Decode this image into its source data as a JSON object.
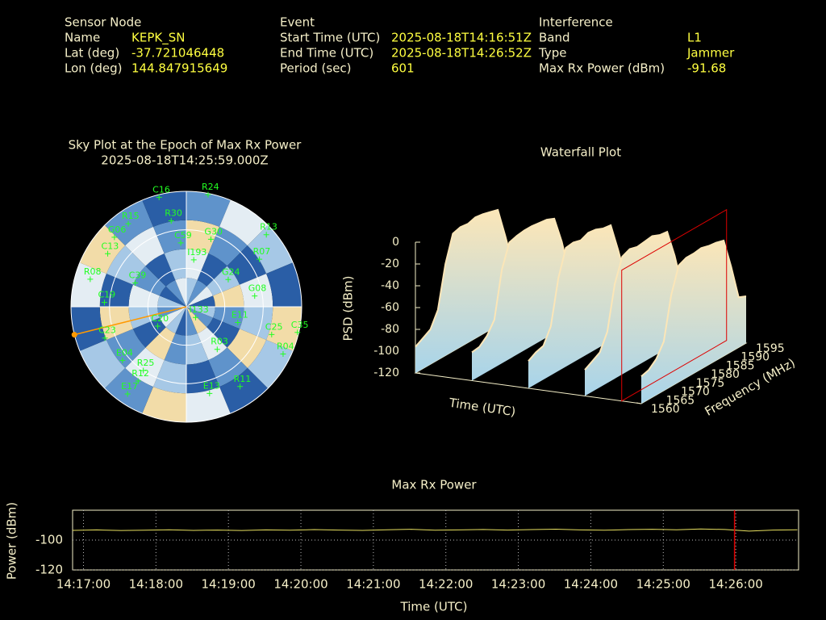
{
  "info": [
    {
      "title": "Sensor Node",
      "rows": [
        [
          "Name",
          "KEPK_SN"
        ],
        [
          "Lat (deg)",
          "-37.721046448"
        ],
        [
          "Lon (deg)",
          "144.847915649"
        ]
      ]
    },
    {
      "title": "Event",
      "rows": [
        [
          "Start Time (UTC)",
          "2025-08-18T14:16:51Z"
        ],
        [
          "End Time (UTC)",
          "2025-08-18T14:26:52Z"
        ],
        [
          "Period (sec)",
          "601"
        ]
      ]
    },
    {
      "title": "Interference",
      "rows": [
        [
          "Band",
          "L1"
        ],
        [
          "Type",
          "Jammer"
        ],
        [
          "Max Rx Power (dBm)",
          "-91.68"
        ]
      ]
    }
  ],
  "chart_data": [
    {
      "type": "polar",
      "title": "Sky Plot at the Epoch of Max Rx Power",
      "subtitle": "2025-08-18T14:25:59.000Z",
      "cell_levels": [
        [
          2,
          1,
          3,
          0,
          2,
          1,
          4,
          1,
          0,
          2,
          3,
          1,
          2,
          0,
          1,
          3
        ],
        [
          3,
          0,
          2,
          4,
          1,
          0,
          3,
          2,
          1,
          4,
          0,
          2,
          3,
          1,
          0,
          2
        ],
        [
          4,
          1,
          0,
          3,
          2,
          4,
          1,
          0,
          2,
          3,
          1,
          4,
          0,
          2,
          3,
          1
        ],
        [
          1,
          3,
          2,
          0,
          4,
          2,
          0,
          3,
          4,
          1,
          2,
          0,
          3,
          4,
          1,
          0
        ]
      ],
      "colors": [
        "#2a5ea6",
        "#5f93cb",
        "#a6c8e6",
        "#e4edf3",
        "#f2dca8"
      ],
      "elevation_grid": [
        30,
        60
      ],
      "azimuth_grid": [
        0,
        90,
        180,
        270
      ],
      "interference_azimuth": 256,
      "interference_color": "#ff9900",
      "satellite_color": "#22ff22",
      "satellites": [
        {
          "label": "C16",
          "az": 346,
          "el": 2
        },
        {
          "label": "R24",
          "az": 11,
          "el": 1
        },
        {
          "label": "R30",
          "az": 350,
          "el": 22
        },
        {
          "label": "R15",
          "az": 325,
          "el": 11
        },
        {
          "label": "R13",
          "az": 48,
          "el": 6
        },
        {
          "label": "G30",
          "az": 20,
          "el": 34
        },
        {
          "label": "C59",
          "az": 355,
          "el": 40
        },
        {
          "label": "G06",
          "az": 314,
          "el": 12
        },
        {
          "label": "C13",
          "az": 304,
          "el": 16
        },
        {
          "label": "R07",
          "az": 57,
          "el": 22
        },
        {
          "label": "I193",
          "az": 9,
          "el": 53
        },
        {
          "label": "G24",
          "az": 57,
          "el": 51
        },
        {
          "label": "R08",
          "az": 286,
          "el": 12
        },
        {
          "label": "C39",
          "az": 295,
          "el": 46
        },
        {
          "label": "G08",
          "az": 81,
          "el": 36
        },
        {
          "label": "C19",
          "az": 273,
          "el": 26
        },
        {
          "label": "I133",
          "az": 139,
          "el": 79
        },
        {
          "label": "C20",
          "az": 236,
          "el": 63
        },
        {
          "label": "E11",
          "az": 107,
          "el": 48
        },
        {
          "label": "C25",
          "az": 108,
          "el": 20
        },
        {
          "label": "C35",
          "az": 103,
          "el": 1
        },
        {
          "label": "R03",
          "az": 144,
          "el": 49
        },
        {
          "label": "C23",
          "az": 249,
          "el": 22
        },
        {
          "label": "E04",
          "az": 230,
          "el": 25
        },
        {
          "label": "R25",
          "az": 214,
          "el": 30
        },
        {
          "label": "R04",
          "az": 116,
          "el": 6
        },
        {
          "label": "R11",
          "az": 146,
          "el": 15
        },
        {
          "label": "R12",
          "az": 213,
          "el": 21
        },
        {
          "label": "E13",
          "az": 165,
          "el": 20
        },
        {
          "label": "E17",
          "az": 214,
          "el": 8
        }
      ]
    },
    {
      "type": "surface3d",
      "title": "Waterfall Plot",
      "zlabel": "PSD (dBm)",
      "xlabel": "Time (UTC)",
      "ylabel": "Frequency (MHz)",
      "zlim": [
        -120,
        0
      ],
      "zticks": [
        -120,
        -100,
        -80,
        -60,
        -40,
        -20,
        0
      ],
      "flim": [
        1560,
        1595
      ],
      "fticks": [
        1560,
        1565,
        1570,
        1575,
        1580,
        1585,
        1590,
        1595
      ],
      "tlim": [
        "14:16:51",
        "14:26:51"
      ],
      "times": [
        "14:16:51",
        "14:19:21",
        "14:21:51",
        "14:24:21",
        "14:26:51"
      ],
      "frequencies": [
        1560,
        1562.5,
        1565,
        1567.5,
        1570,
        1572.5,
        1575,
        1577.5,
        1580,
        1582.5,
        1585,
        1587.5,
        1590,
        1592.5,
        1595
      ],
      "psd": [
        [
          -96,
          -92,
          -88,
          -74,
          -36,
          -12,
          -10,
          -11,
          -9,
          -10,
          -12,
          -14,
          -42,
          -72,
          -78
        ],
        [
          -94,
          -93,
          -87,
          -76,
          -34,
          -13,
          -11,
          -10,
          -10,
          -11,
          -12,
          -15,
          -40,
          -73,
          -77
        ],
        [
          -95,
          -91,
          -89,
          -75,
          -35,
          -11,
          -10,
          -12,
          -9,
          -10,
          -13,
          -14,
          -41,
          -71,
          -79
        ],
        [
          -96,
          -92,
          -88,
          -73,
          -33,
          -12,
          -9,
          -11,
          -10,
          -9,
          -12,
          -13,
          -39,
          -72,
          -78
        ],
        [
          -95,
          -93,
          -87,
          -75,
          -36,
          -13,
          -10,
          -10,
          -9,
          -11,
          -12,
          -14,
          -42,
          -74,
          -77
        ]
      ],
      "colors": [
        "#a8d4ea",
        "#fbe6b8"
      ],
      "marker_time": "14:25:59",
      "marker_color": "#dd0000"
    },
    {
      "type": "line",
      "title": "Max Rx Power",
      "xlabel": "Time (UTC)",
      "ylabel": "Power (dBm)",
      "color": "#e8e060",
      "grid": true,
      "ylim": [
        -120,
        -80
      ],
      "yticks": [
        -120,
        -100
      ],
      "xlim": [
        "14:16:51",
        "14:26:52"
      ],
      "xticks": [
        "14:17:00",
        "14:18:00",
        "14:19:00",
        "14:20:00",
        "14:21:00",
        "14:22:00",
        "14:23:00",
        "14:24:00",
        "14:25:00",
        "14:26:00"
      ],
      "x": [
        "14:16:51",
        "14:17:11",
        "14:17:31",
        "14:17:51",
        "14:18:11",
        "14:18:31",
        "14:18:51",
        "14:19:11",
        "14:19:31",
        "14:19:51",
        "14:20:11",
        "14:20:31",
        "14:20:51",
        "14:21:11",
        "14:21:31",
        "14:21:51",
        "14:22:11",
        "14:22:31",
        "14:22:51",
        "14:23:11",
        "14:23:31",
        "14:23:51",
        "14:24:11",
        "14:24:31",
        "14:24:51",
        "14:25:11",
        "14:25:31",
        "14:25:51",
        "14:26:11",
        "14:26:31",
        "14:26:51"
      ],
      "values": [
        -93.5,
        -93.2,
        -93.6,
        -93.4,
        -93.1,
        -93.5,
        -93.3,
        -93.6,
        -93.2,
        -93.4,
        -93.0,
        -93.3,
        -93.5,
        -93.1,
        -92.8,
        -93.4,
        -93.2,
        -92.9,
        -93.3,
        -93.0,
        -92.7,
        -93.2,
        -93.4,
        -93.0,
        -92.8,
        -93.1,
        -92.6,
        -92.9,
        -94.0,
        -93.3,
        -93.1
      ],
      "marker_x": "14:25:59",
      "marker_color": "#dd0000"
    }
  ]
}
